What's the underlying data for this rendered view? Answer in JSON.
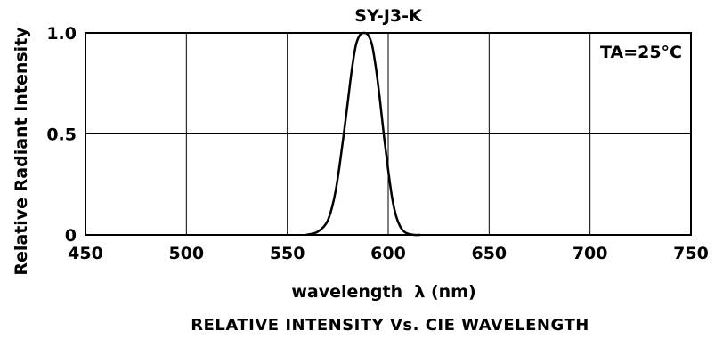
{
  "chart_data": {
    "type": "line",
    "title": "SY-J3-K",
    "subtitle": "RELATIVE INTENSITY Vs. CIE WAVELENGTH",
    "xlabel": "wavelength  λ (nm)",
    "ylabel": "Relative Radiant Intensity",
    "annotation": "TA=25°C",
    "xlim": [
      450,
      750
    ],
    "ylim": [
      0,
      1.0
    ],
    "x_ticks": [
      450,
      500,
      550,
      600,
      650,
      700,
      750
    ],
    "x_tick_labels": [
      "450",
      "500",
      "550",
      "600",
      "650",
      "700",
      "750"
    ],
    "y_ticks": [
      0,
      0.5,
      1.0
    ],
    "y_tick_labels": [
      "0",
      "0.5",
      "1.0"
    ],
    "grid": true,
    "series": [
      {
        "color": "#000000",
        "x": [
          559,
          562,
          565,
          568,
          570,
          572,
          574,
          576,
          578,
          580,
          582,
          584,
          586,
          588,
          590,
          592,
          594,
          596,
          598,
          600,
          602,
          604,
          606,
          608,
          610,
          613,
          616
        ],
        "y": [
          0.0,
          0.005,
          0.015,
          0.04,
          0.07,
          0.13,
          0.22,
          0.35,
          0.5,
          0.66,
          0.82,
          0.94,
          0.99,
          1.0,
          0.99,
          0.94,
          0.82,
          0.66,
          0.48,
          0.32,
          0.18,
          0.09,
          0.04,
          0.015,
          0.005,
          0.0,
          0.0
        ]
      }
    ]
  }
}
